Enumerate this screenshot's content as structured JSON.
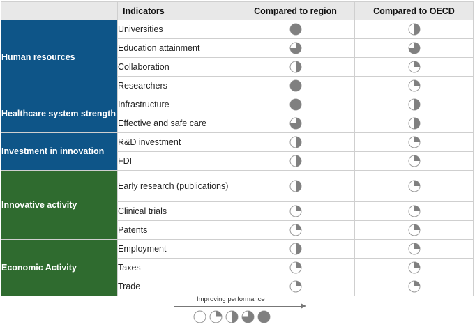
{
  "header": {
    "indicators": "Indicators",
    "region": "Compared to region",
    "oecd": "Compared to OECD"
  },
  "groups": [
    {
      "label": "Human resources",
      "color": "#0e5588",
      "rows": [
        {
          "indicator": "Universities",
          "region": 4,
          "oecd": 2
        },
        {
          "indicator": "Education attainment",
          "region": 3,
          "oecd": 3
        },
        {
          "indicator": "Collaboration",
          "region": 2,
          "oecd": 1
        },
        {
          "indicator": "Researchers",
          "region": 4,
          "oecd": 1
        }
      ]
    },
    {
      "label": "Healthcare system strength",
      "color": "#0e5588",
      "rows": [
        {
          "indicator": "Infrastructure",
          "region": 4,
          "oecd": 2
        },
        {
          "indicator": "Effective and safe care",
          "region": 3,
          "oecd": 2
        }
      ]
    },
    {
      "label": "Investment in innovation",
      "color": "#0e5588",
      "rows": [
        {
          "indicator": "R&D investment",
          "region": 2,
          "oecd": 1
        },
        {
          "indicator": "FDI",
          "region": 2,
          "oecd": 1
        }
      ]
    },
    {
      "label": "Innovative activity",
      "color": "#2f6b2f",
      "rows": [
        {
          "indicator": "Early research (publications)",
          "region": 2,
          "oecd": 1
        },
        {
          "indicator": "Clinical trials",
          "region": 1,
          "oecd": 1
        },
        {
          "indicator": "Patents",
          "region": 1,
          "oecd": 1
        }
      ]
    },
    {
      "label": "Economic Activity",
      "color": "#2f6b2f",
      "rows": [
        {
          "indicator": "Employment",
          "region": 2,
          "oecd": 1
        },
        {
          "indicator": "Taxes",
          "region": 1,
          "oecd": 1
        },
        {
          "indicator": "Trade",
          "region": 1,
          "oecd": 1
        }
      ]
    }
  ],
  "legend": {
    "label": "Improving performance",
    "levels": [
      0,
      1,
      2,
      3,
      4
    ]
  },
  "colors": {
    "pie_fill": "#808080",
    "pie_outline": "#9a9a9a"
  }
}
